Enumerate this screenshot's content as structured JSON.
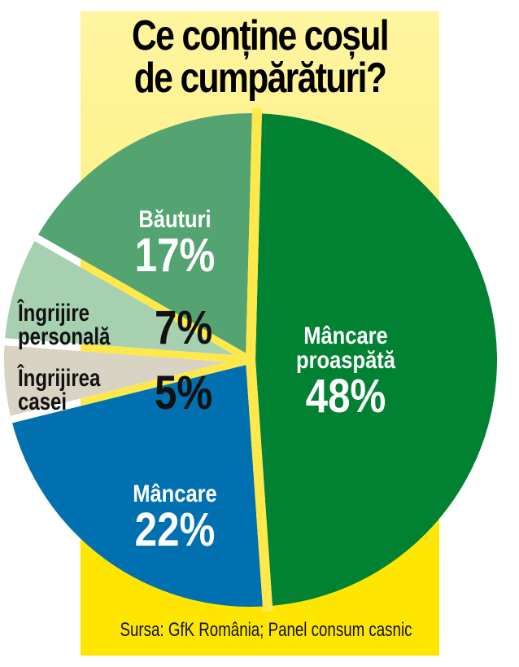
{
  "title": {
    "line1": "Ce conține coșul",
    "line2": "de cumpărături?"
  },
  "source": "Sursa: GfK România; Panel consum casnic",
  "colors": {
    "panel_top": "#fff5a0",
    "panel_bottom": "#ffe600",
    "separator": "#ffe84a",
    "fresh_food": "#008232",
    "food": "#0070b0",
    "home_care": "#d9d3c4",
    "personal_care": "#a7d0b0",
    "drinks": "#53a470"
  },
  "slices": [
    {
      "name": "Mâncare proaspătă",
      "name_line1": "Mâncare",
      "name_line2": "proaspătă",
      "pct": "48%"
    },
    {
      "name": "Mâncare",
      "pct": "22%"
    },
    {
      "name": "Îngrijirea casei",
      "name_line1": "Îngrijirea",
      "name_line2": "casei",
      "pct": "5%"
    },
    {
      "name": "Îngrijire personală",
      "name_line1": "Îngrijire",
      "name_line2": "personală",
      "pct": "7%"
    },
    {
      "name": "Băuturi",
      "pct": "17%"
    }
  ],
  "chart_data": {
    "type": "pie",
    "title": "Ce conține coșul de cumpărături?",
    "categories": [
      "Mâncare proaspătă",
      "Mâncare",
      "Îngrijirea casei",
      "Îngrijire personală",
      "Băuturi"
    ],
    "values": [
      48,
      22,
      5,
      7,
      17
    ],
    "unit": "%",
    "colors": [
      "#008232",
      "#0070b0",
      "#d9d3c4",
      "#a7d0b0",
      "#53a470"
    ],
    "start_angle": "12 o'clock, clockwise",
    "legend": "none (labels inside slices)",
    "source": "Sursa: GfK România; Panel consum casnic"
  }
}
